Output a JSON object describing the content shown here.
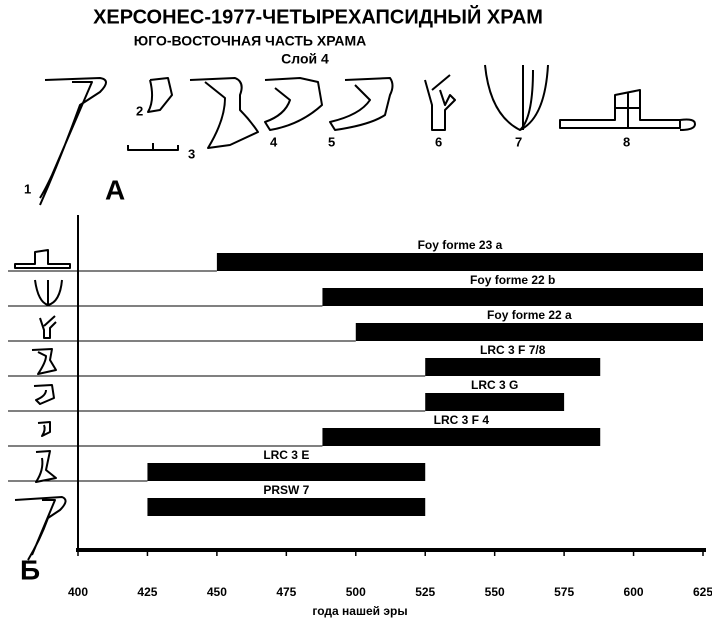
{
  "header": {
    "title": "ХЕРСОНЕС-1977-ЧЕТЫРЕХАПСИДНЫЙ ХРАМ",
    "subtitle": "ЮГО-ВОСТОЧНАЯ ЧАСТЬ ХРАМА",
    "layer": "Слой 4",
    "panel_a": "А",
    "panel_b": "Б",
    "figure_numbers": [
      "1",
      "2",
      "3",
      "4",
      "5",
      "6",
      "7",
      "8"
    ]
  },
  "chart_data": {
    "type": "range-bar",
    "xlabel": "года нашей эры",
    "categories": [
      "Foy forme 23 a",
      "Foy forme 22 b",
      "Foy forme 22 a",
      "LRC 3 F 7/8",
      "LRC 3 G",
      "LRC 3 F 4",
      "LRC 3 E",
      "PRSW 7"
    ],
    "starts": [
      450,
      488,
      500,
      525,
      525,
      488,
      425,
      425
    ],
    "ends": [
      625,
      625,
      625,
      588,
      575,
      588,
      525,
      525
    ],
    "color": "#000000",
    "xlim": [
      400,
      625
    ],
    "xticks": [
      400,
      425,
      450,
      475,
      500,
      525,
      550,
      575,
      600,
      625
    ]
  }
}
